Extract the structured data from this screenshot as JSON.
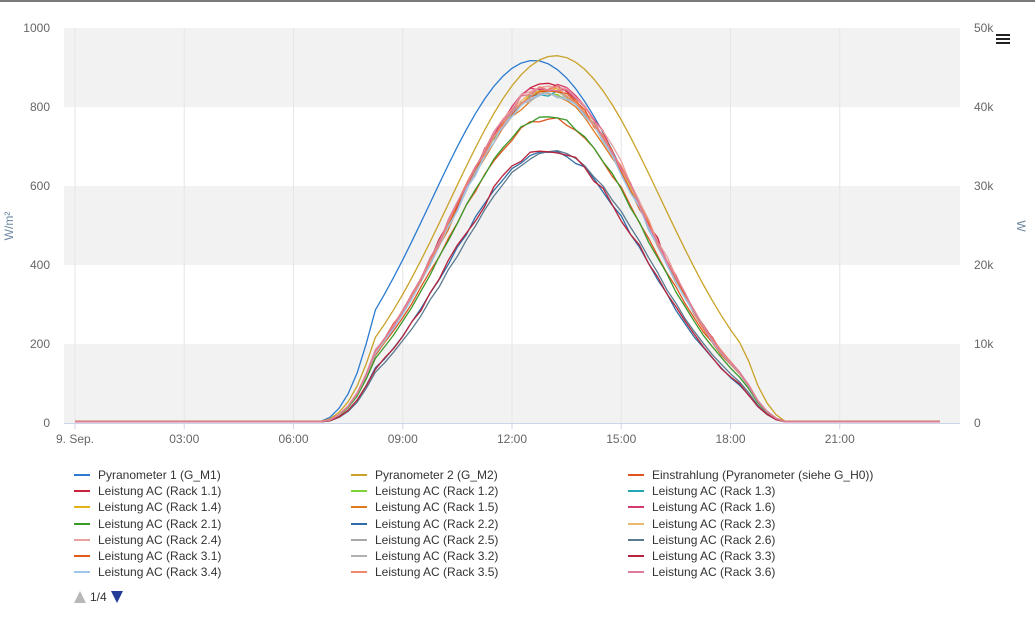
{
  "chart_data": {
    "type": "line",
    "title": "",
    "x_tick_labels": [
      "9. Sep.",
      "03:00",
      "06:00",
      "09:00",
      "12:00",
      "15:00",
      "18:00",
      "21:00"
    ],
    "x_range_hours": [
      0,
      24
    ],
    "y_left": {
      "label": "W/m²",
      "ticks": [
        "0",
        "200",
        "400",
        "600",
        "800",
        "1000"
      ],
      "range": [
        0,
        1000
      ]
    },
    "y_right": {
      "label": "W",
      "ticks": [
        "0",
        "10k",
        "20k",
        "30k",
        "40k",
        "50k"
      ],
      "range": [
        0,
        50000
      ]
    },
    "grid": "horizontal alternating bands",
    "legend_placement": "bottom",
    "series": [
      {
        "name": "Pyranometer 1 (G_M1)",
        "color": "#2b7bd0",
        "axis": "left",
        "peak_time": 12.6,
        "peak": 918,
        "sigma": 2.85,
        "noise": 0
      },
      {
        "name": "Pyranometer 2 (G_M2)",
        "color": "#c9a227",
        "axis": "left",
        "peak_time": 13.2,
        "peak": 930,
        "sigma": 2.9,
        "noise": 0
      },
      {
        "name": "Einstrahlung (Pyranometer (siehe G_H0))",
        "color": "#e0531f",
        "axis": "left",
        "peak_time": 13.0,
        "peak": 770,
        "sigma": 2.75,
        "noise": 6
      },
      {
        "name": "Leistung AC (Rack 1.1)",
        "color": "#c8223a",
        "axis": "right",
        "peak_time": 13.0,
        "peak": 42500,
        "sigma": 2.7,
        "noise": 700
      },
      {
        "name": "Leistung AC (Rack 1.2)",
        "color": "#7ed23a",
        "axis": "right",
        "peak_time": 13.0,
        "peak": 42000,
        "sigma": 2.7,
        "noise": 400
      },
      {
        "name": "Leistung AC (Rack 1.3)",
        "color": "#22a7b8",
        "axis": "right",
        "peak_time": 13.0,
        "peak": 41800,
        "sigma": 2.7,
        "noise": 500
      },
      {
        "name": "Leistung AC (Rack 1.4)",
        "color": "#e3b11a",
        "axis": "right",
        "peak_time": 13.0,
        "peak": 42200,
        "sigma": 2.7,
        "noise": 400
      },
      {
        "name": "Leistung AC (Rack 1.5)",
        "color": "#e07a1f",
        "axis": "right",
        "peak_time": 13.0,
        "peak": 41500,
        "sigma": 2.7,
        "noise": 400
      },
      {
        "name": "Leistung AC (Rack 1.6)",
        "color": "#d63a6a",
        "axis": "right",
        "peak_time": 13.0,
        "peak": 42700,
        "sigma": 2.7,
        "noise": 500
      },
      {
        "name": "Leistung AC (Rack 2.1)",
        "color": "#3a9a2a",
        "axis": "right",
        "peak_time": 13.0,
        "peak": 38800,
        "sigma": 2.7,
        "noise": 300
      },
      {
        "name": "Leistung AC (Rack 2.2)",
        "color": "#2f6ea8",
        "axis": "right",
        "peak_time": 13.0,
        "peak": 34500,
        "sigma": 2.65,
        "noise": 300
      },
      {
        "name": "Leistung AC (Rack 2.3)",
        "color": "#e8b870",
        "axis": "right",
        "peak_time": 13.0,
        "peak": 42300,
        "sigma": 2.7,
        "noise": 400
      },
      {
        "name": "Leistung AC (Rack 2.4)",
        "color": "#e8a0a0",
        "axis": "right",
        "peak_time": 13.0,
        "peak": 43000,
        "sigma": 2.7,
        "noise": 500
      },
      {
        "name": "Leistung AC (Rack 2.5)",
        "color": "#a8a8a8",
        "axis": "right",
        "peak_time": 13.0,
        "peak": 41900,
        "sigma": 2.7,
        "noise": 400
      },
      {
        "name": "Leistung AC (Rack 2.6)",
        "color": "#5a7a90",
        "axis": "right",
        "peak_time": 13.1,
        "peak": 34400,
        "sigma": 2.65,
        "noise": 200
      },
      {
        "name": "Leistung AC (Rack 3.1)",
        "color": "#e05a1a",
        "axis": "right",
        "peak_time": 13.0,
        "peak": 42100,
        "sigma": 2.7,
        "noise": 400
      },
      {
        "name": "Leistung AC (Rack 3.2)",
        "color": "#b0b0b0",
        "axis": "right",
        "peak_time": 13.0,
        "peak": 41700,
        "sigma": 2.7,
        "noise": 400
      },
      {
        "name": "Leistung AC (Rack 3.3)",
        "color": "#b8223a",
        "axis": "right",
        "peak_time": 13.0,
        "peak": 34600,
        "sigma": 2.65,
        "noise": 500
      },
      {
        "name": "Leistung AC (Rack 3.4)",
        "color": "#9ec5ea",
        "axis": "right",
        "peak_time": 13.0,
        "peak": 41600,
        "sigma": 2.7,
        "noise": 300
      },
      {
        "name": "Leistung AC (Rack 3.5)",
        "color": "#f0886a",
        "axis": "right",
        "peak_time": 13.0,
        "peak": 42400,
        "sigma": 2.7,
        "noise": 500
      },
      {
        "name": "Leistung AC (Rack 3.6)",
        "color": "#e07a9a",
        "axis": "right",
        "peak_time": 13.0,
        "peak": 42600,
        "sigma": 2.7,
        "noise": 500
      }
    ]
  },
  "legend_pager": {
    "text": "1/4"
  },
  "icons": {
    "menu": "hamburger-menu-icon",
    "pager_up": "triangle-up-icon",
    "pager_down": "triangle-down-icon"
  }
}
